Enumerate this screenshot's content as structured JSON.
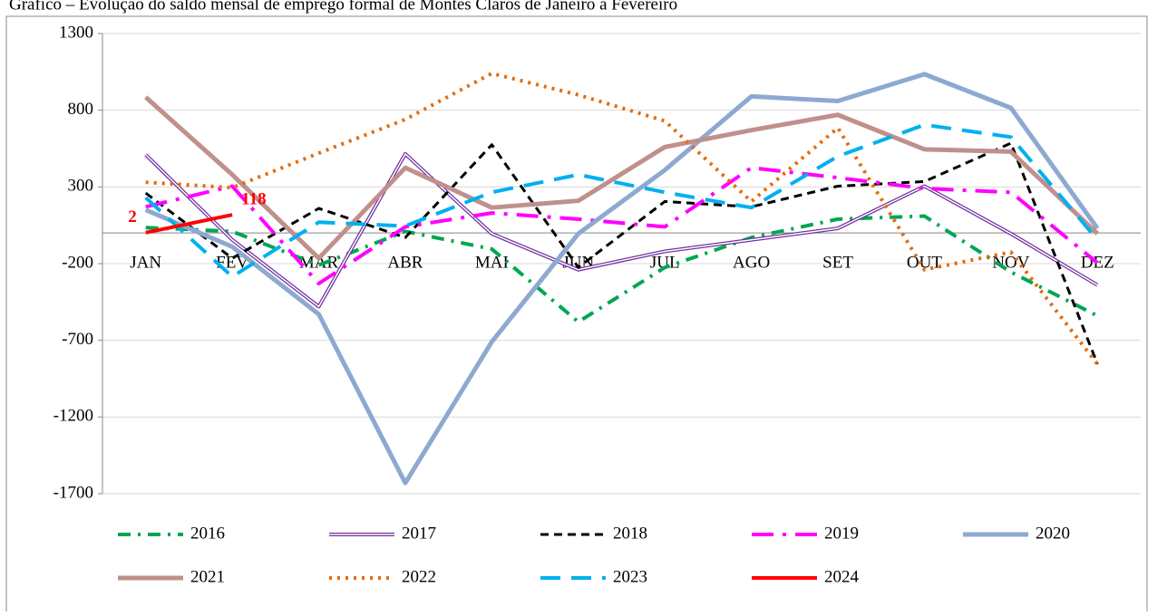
{
  "chart_data": {
    "type": "line",
    "title": "Gráfico – Evolução do saldo mensal de emprego formal de Montes Claros de Janeiro a Fevereiro",
    "categories": [
      "JAN",
      "FEV",
      "MAR",
      "ABR",
      "MAI",
      "JUN",
      "JUL",
      "AGO",
      "SET",
      "OUT",
      "NOV",
      "DEZ"
    ],
    "ylim": [
      -1700,
      1300
    ],
    "yticks": [
      -1700,
      -1200,
      -700,
      -200,
      300,
      800,
      1300
    ],
    "grid": true,
    "series": [
      {
        "name": "2016",
        "color": "#00a651",
        "dash": "14 8 3 8",
        "width": 4,
        "values": [
          35,
          10,
          -210,
          10,
          -105,
          -580,
          -225,
          -30,
          90,
          110,
          -255,
          -540
        ]
      },
      {
        "name": "2017",
        "color": "#7030a0",
        "dash": "double",
        "width": 4,
        "values": [
          510,
          -45,
          -480,
          515,
          -5,
          -240,
          -120,
          -45,
          30,
          305,
          -5,
          -340
        ]
      },
      {
        "name": "2018",
        "color": "#000000",
        "dash": "9 6",
        "width": 3,
        "values": [
          260,
          -165,
          160,
          -30,
          575,
          -225,
          205,
          170,
          305,
          335,
          585,
          -855
        ]
      },
      {
        "name": "2019",
        "color": "#ff00ff",
        "dash": "24 10 4 10",
        "width": 4,
        "values": [
          170,
          305,
          -330,
          40,
          130,
          90,
          40,
          425,
          360,
          290,
          265,
          -195
        ]
      },
      {
        "name": "2020",
        "color": "#8ea9d1",
        "dash": "none",
        "width": 5,
        "values": [
          150,
          -90,
          -530,
          -1630,
          -710,
          -5,
          410,
          890,
          860,
          1035,
          815,
          30
        ]
      },
      {
        "name": "2021",
        "color": "#c0908c",
        "dash": "none",
        "width": 5,
        "values": [
          885,
          380,
          -165,
          425,
          165,
          210,
          560,
          670,
          770,
          545,
          530,
          -5
        ]
      },
      {
        "name": "2022",
        "color": "#e36c0a",
        "dash": "3 6",
        "width": 4,
        "values": [
          330,
          295,
          520,
          740,
          1040,
          900,
          730,
          205,
          685,
          -240,
          -125,
          -855
        ]
      },
      {
        "name": "2023",
        "color": "#00b0f0",
        "dash": "22 12",
        "width": 4,
        "values": [
          230,
          -285,
          70,
          45,
          265,
          380,
          265,
          165,
          500,
          705,
          625,
          -45
        ]
      },
      {
        "name": "2024",
        "color": "#ff0000",
        "dash": "none",
        "width": 4,
        "labels": true,
        "values": [
          2,
          118,
          null,
          null,
          null,
          null,
          null,
          null,
          null,
          null,
          null,
          null
        ]
      }
    ]
  }
}
